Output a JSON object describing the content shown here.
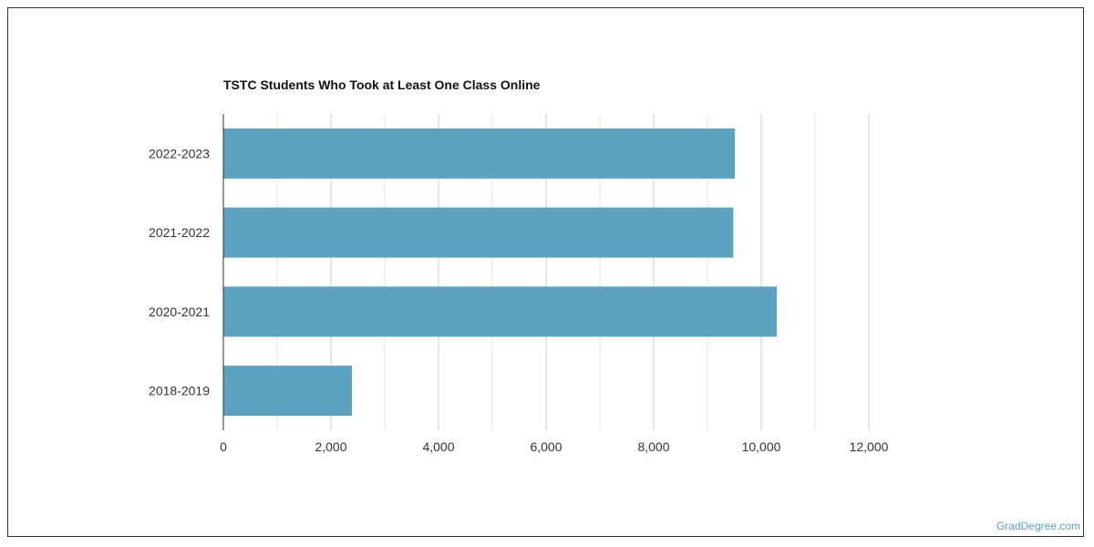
{
  "chart_data": {
    "type": "bar",
    "orientation": "horizontal",
    "title": "TSTC Students Who Took at Least One Class Online",
    "categories": [
      "2022-2023",
      "2021-2022",
      "2020-2021",
      "2018-2019"
    ],
    "values": [
      9510,
      9480,
      10290,
      2390
    ],
    "xlim": [
      0,
      12000
    ],
    "xticks": [
      0,
      2000,
      4000,
      6000,
      8000,
      10000,
      12000
    ],
    "xtick_labels": [
      "0",
      "2,000",
      "4,000",
      "6,000",
      "8,000",
      "10,000",
      "12,000"
    ],
    "xlabel": "",
    "ylabel": "",
    "grid": true,
    "bar_color": "#5ba3c0"
  },
  "watermark": "GradDegree.com"
}
